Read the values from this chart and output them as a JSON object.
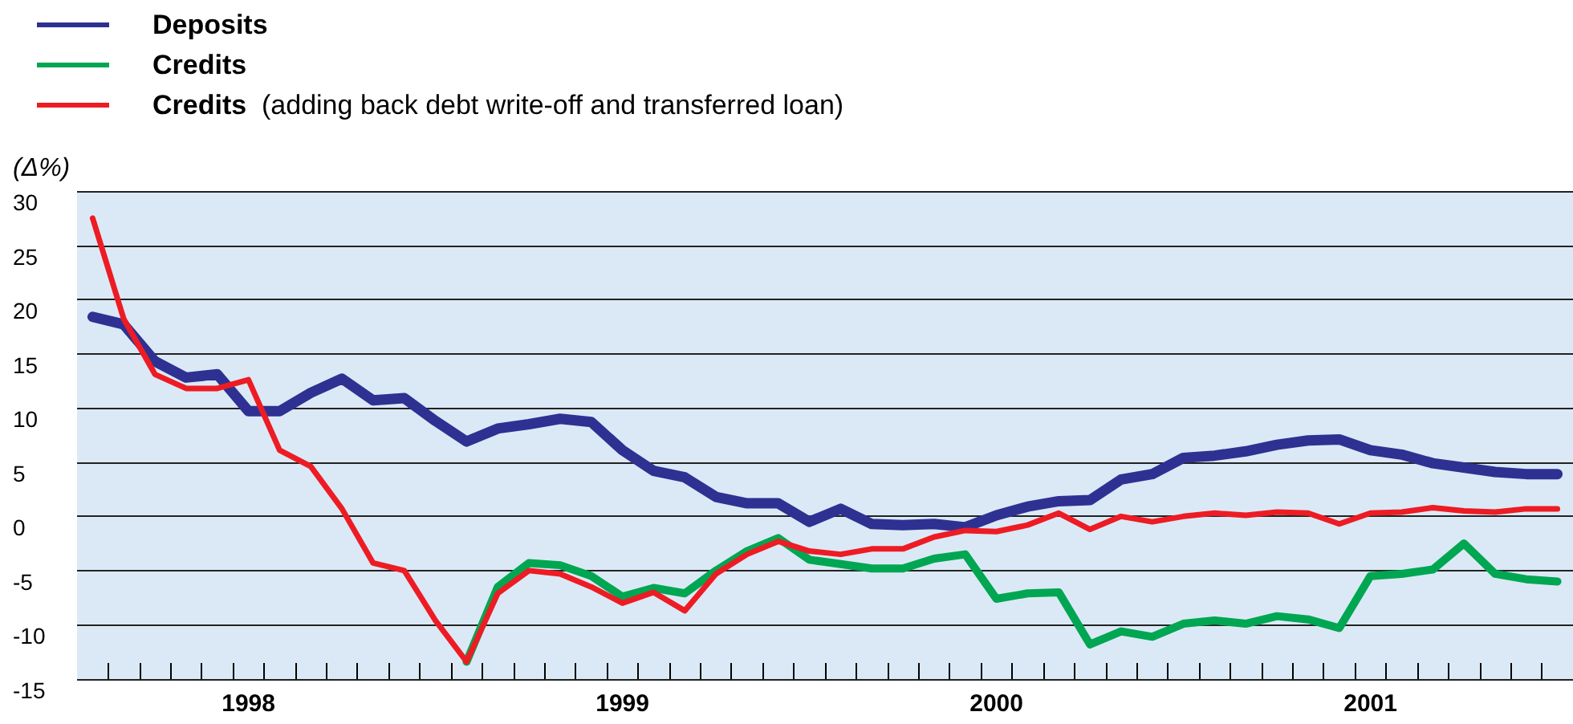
{
  "chart_data": {
    "type": "line",
    "ylabel": "(Δ%)",
    "categories": [
      null,
      null,
      null,
      null,
      null,
      "1998",
      null,
      null,
      null,
      null,
      null,
      null,
      null,
      null,
      null,
      null,
      null,
      "1999",
      null,
      null,
      null,
      null,
      null,
      null,
      null,
      null,
      null,
      null,
      null,
      "2000",
      null,
      null,
      null,
      null,
      null,
      null,
      null,
      null,
      null,
      null,
      null,
      "2001",
      null,
      null,
      null,
      null,
      null,
      null
    ],
    "series": [
      {
        "name": "Deposits",
        "color": "#2e3192",
        "values": [
          18.4,
          17.7,
          14.3,
          12.8,
          13.1,
          9.7,
          9.7,
          11.4,
          12.7,
          10.7,
          10.9,
          8.8,
          6.9,
          8.1,
          8.5,
          9.0,
          8.7,
          6.1,
          4.2,
          3.6,
          1.8,
          1.2,
          1.2,
          -0.5,
          0.7,
          -0.7,
          -0.8,
          -0.7,
          -1.0,
          0.1,
          0.9,
          1.4,
          1.5,
          3.4,
          3.9,
          5.4,
          5.6,
          6.0,
          6.6,
          7.0,
          7.1,
          6.1,
          5.7,
          4.9,
          4.5,
          4.1,
          3.9,
          3.9
        ]
      },
      {
        "name": "Credits",
        "color": "#00a651",
        "values": [
          null,
          null,
          null,
          null,
          null,
          null,
          null,
          null,
          null,
          null,
          null,
          null,
          -13.4,
          -6.5,
          -4.3,
          -4.5,
          -5.5,
          -7.4,
          -6.6,
          -7.1,
          -5.0,
          -3.2,
          -2.0,
          -4.0,
          -4.4,
          -4.8,
          -4.8,
          -3.9,
          -3.5,
          -7.6,
          -7.1,
          -7.0,
          -11.8,
          -10.6,
          -11.1,
          -9.9,
          -9.6,
          -9.9,
          -9.2,
          -9.5,
          -10.3,
          -5.5,
          -5.3,
          -4.9,
          -2.5,
          -5.3,
          -5.8,
          -6.0
        ]
      },
      {
        "name": "Credits  (adding back debt write-off and transferred loan)",
        "color": "#ed1c24",
        "values": [
          27.5,
          18.2,
          13.1,
          11.8,
          11.8,
          12.6,
          6.1,
          4.6,
          0.7,
          -4.3,
          -5.0,
          -9.6,
          -13.4,
          -7.1,
          -5.0,
          -5.3,
          -6.5,
          -8.0,
          -7.0,
          -8.7,
          -5.3,
          -3.5,
          -2.3,
          -3.2,
          -3.5,
          -3.0,
          -3.0,
          -1.9,
          -1.3,
          -1.4,
          -0.8,
          0.3,
          -1.2,
          0.0,
          -0.5,
          0.0,
          0.3,
          0.1,
          0.4,
          0.3,
          -0.7,
          0.3,
          0.4,
          0.8,
          0.5,
          0.4,
          0.7,
          0.7
        ]
      }
    ],
    "ylim": [
      -15,
      30
    ],
    "yticks": [
      -15,
      -10,
      -5,
      0,
      5,
      10,
      15,
      20,
      25,
      30
    ],
    "grid": "y",
    "legend": "top left",
    "marker": "none",
    "line_style": "solid"
  }
}
